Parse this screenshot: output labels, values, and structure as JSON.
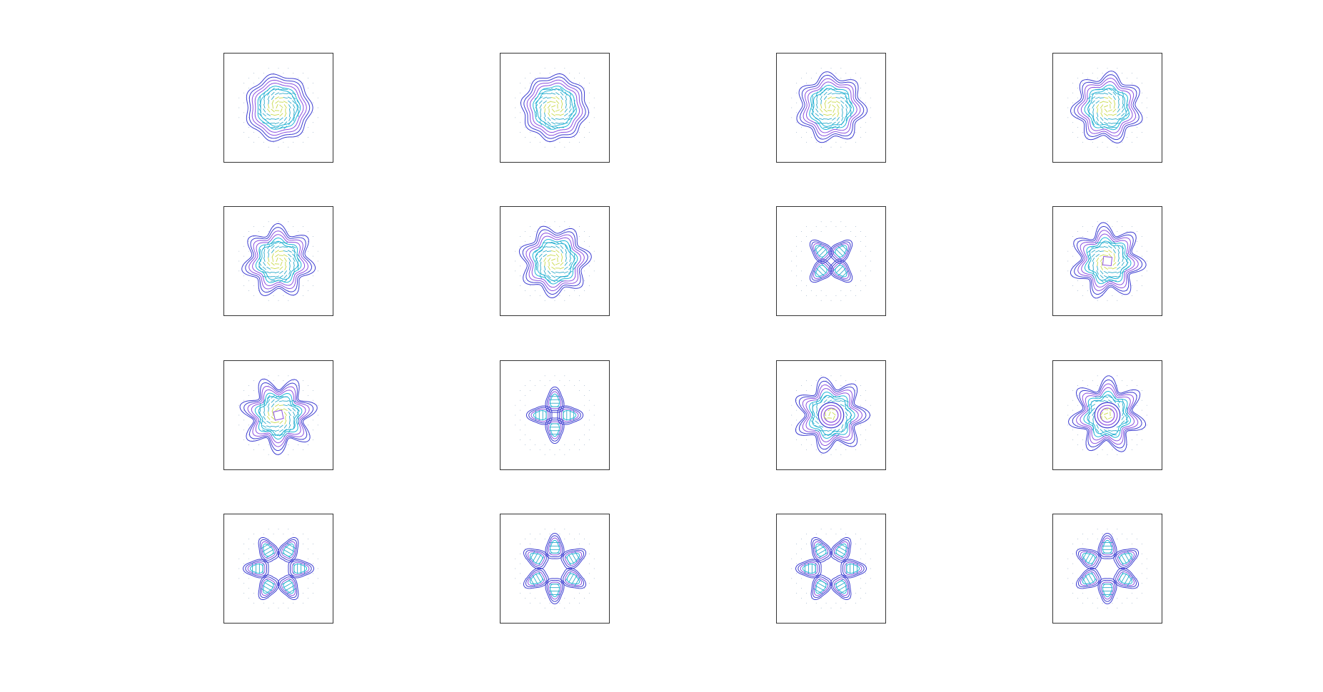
{
  "figure": {
    "rows": 4,
    "cols": 4,
    "colors": {
      "contour_outer": "#3b3bd0",
      "contour_mid": "#8a4fe0",
      "contour_inner": "#1fb4d8",
      "arrow": "#2aa9c9",
      "arrow_core": "#c9d94a",
      "grid_dot": "#9ab0c8",
      "axes_border": "#333333"
    }
  },
  "chart_data": [
    {
      "type": "vector-contour",
      "mode": "ring",
      "lobes": 7,
      "amp": 0.06,
      "rotation": 0
    },
    {
      "type": "vector-contour",
      "mode": "ring",
      "lobes": 8,
      "amp": 0.06,
      "rotation": 10
    },
    {
      "type": "vector-contour",
      "mode": "ring",
      "lobes": 7,
      "amp": 0.12,
      "rotation": 5
    },
    {
      "type": "vector-contour",
      "mode": "ring",
      "lobes": 7,
      "amp": 0.14,
      "rotation": 20
    },
    {
      "type": "vector-contour",
      "mode": "ring",
      "lobes": 7,
      "amp": 0.16,
      "rotation": 12
    },
    {
      "type": "vector-contour",
      "mode": "ring",
      "lobes": 7,
      "amp": 0.14,
      "rotation": -8
    },
    {
      "type": "vector-contour",
      "mode": "quad",
      "lobes": 4,
      "amp": 0.0,
      "rotation": 0
    },
    {
      "type": "vector-contour",
      "mode": "ring-hole",
      "lobes": 7,
      "amp": 0.2,
      "rotation": 6
    },
    {
      "type": "vector-contour",
      "mode": "ring-hole",
      "lobes": 7,
      "amp": 0.22,
      "rotation": -12
    },
    {
      "type": "vector-contour",
      "mode": "quad",
      "lobes": 4,
      "amp": 0.0,
      "rotation": 45
    },
    {
      "type": "vector-contour",
      "mode": "ring-core",
      "lobes": 7,
      "amp": 0.2,
      "rotation": 0
    },
    {
      "type": "vector-contour",
      "mode": "ring-core",
      "lobes": 7,
      "amp": 0.22,
      "rotation": 15
    },
    {
      "type": "vector-contour",
      "mode": "petals",
      "lobes": 6,
      "amp": 0.0,
      "rotation": 0
    },
    {
      "type": "vector-contour",
      "mode": "petals",
      "lobes": 6,
      "amp": 0.0,
      "rotation": 30
    },
    {
      "type": "vector-contour",
      "mode": "petals",
      "lobes": 6,
      "amp": 0.0,
      "rotation": 0
    },
    {
      "type": "vector-contour",
      "mode": "petals",
      "lobes": 6,
      "amp": 0.0,
      "rotation": 30
    }
  ]
}
